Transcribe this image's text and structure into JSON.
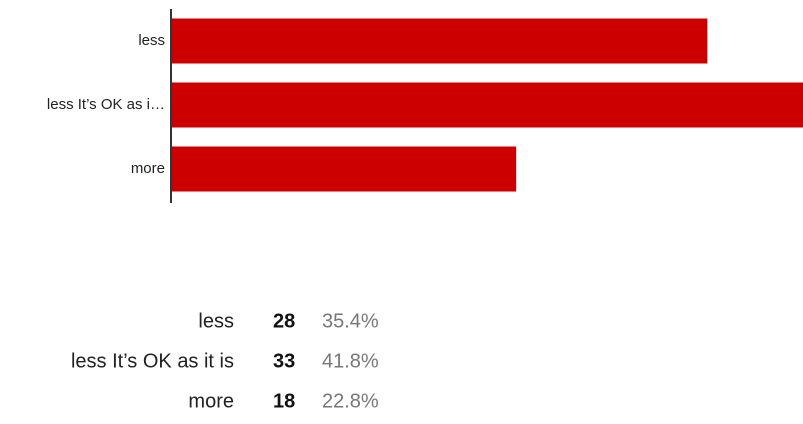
{
  "chart_data": {
    "type": "bar",
    "orientation": "horizontal",
    "categories": [
      "less",
      "less It’s OK as i…",
      "more"
    ],
    "values": [
      28,
      33,
      18
    ],
    "color": "#cc0000"
  },
  "table": {
    "rows": [
      {
        "label": "less",
        "count": 28,
        "percent": "35.4%"
      },
      {
        "label": "less It’s OK as it is",
        "count": 33,
        "percent": "41.8%"
      },
      {
        "label": "more",
        "count": 18,
        "percent": "22.8%"
      }
    ]
  }
}
